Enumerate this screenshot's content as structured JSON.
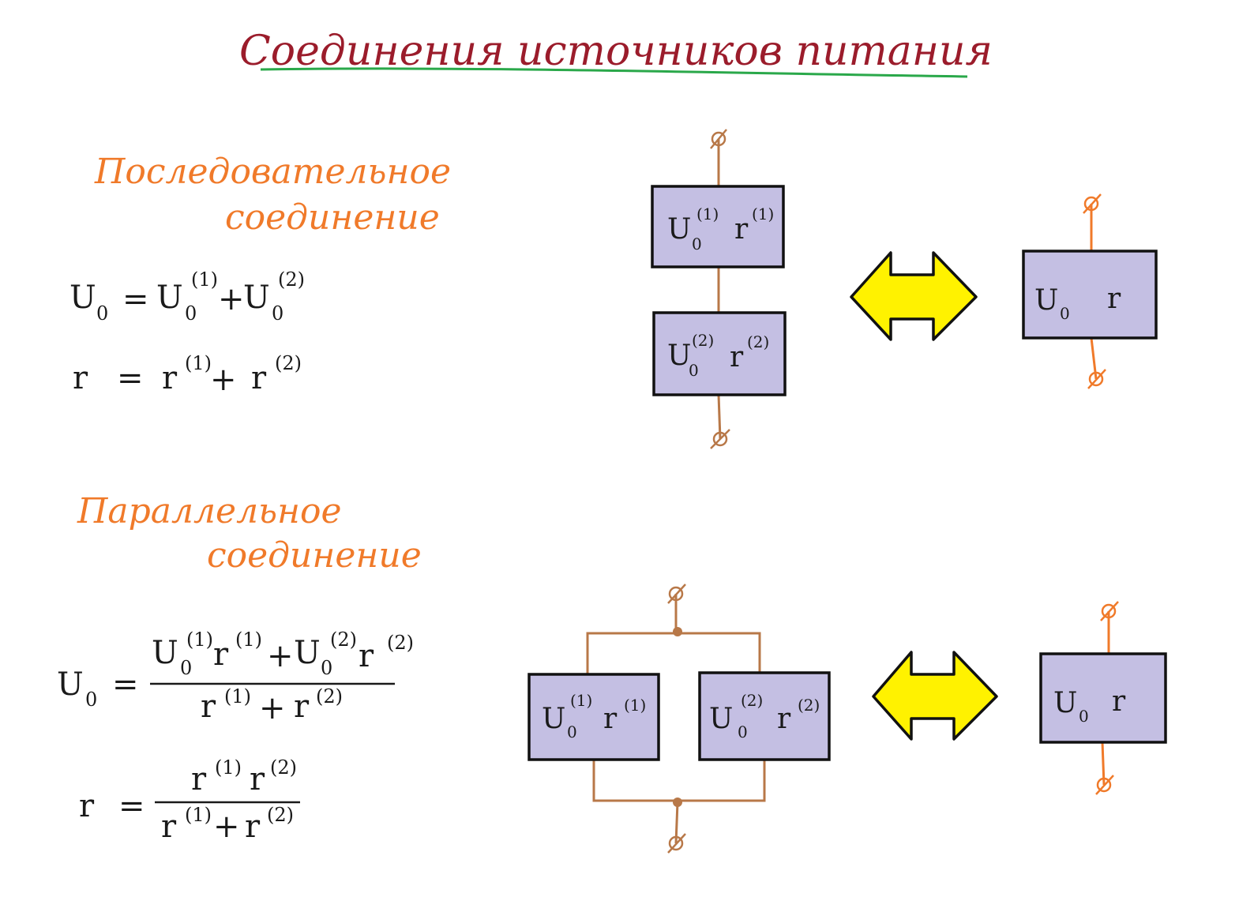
{
  "title": "Соединения источников питания",
  "series_section": {
    "heading_line1": "Последовательное",
    "heading_line2": "соединение",
    "formula_U": {
      "lhs": "U",
      "lhs_sub": "0",
      "eq": "=",
      "t1": "U",
      "t1_sub": "0",
      "t1_sup": "(1)",
      "plus": "+",
      "t2": "U",
      "t2_sub": "0",
      "t2_sup": "(2)"
    },
    "formula_r": {
      "lhs": "r",
      "eq": "=",
      "t1": "r",
      "t1_sup": "(1)",
      "plus": "+",
      "t2": "r",
      "t2_sup": "(2)"
    },
    "box1": {
      "u": "U",
      "u_sub": "0",
      "u_sup": "(1)",
      "r": "r",
      "r_sup": "(1)"
    },
    "box2": {
      "u": "U",
      "u_sub": "0",
      "u_sup": "(2)",
      "r": "r",
      "r_sup": "(2)"
    },
    "equiv": {
      "u": "U",
      "u_sub": "0",
      "r": "r"
    }
  },
  "parallel_section": {
    "heading_line1": "Параллельное",
    "heading_line2": "соединение",
    "formula_U": {
      "lhs": "U",
      "lhs_sub": "0",
      "eq": "=",
      "num_u1": "U",
      "num_u1_sub": "0",
      "num_u1_sup": "(1)",
      "num_r1": "r",
      "num_r1_sup": "(1)",
      "num_plus": "+",
      "num_u2": "U",
      "num_u2_sub": "0",
      "num_u2_sup": "(2)",
      "num_r2": "r",
      "num_r2_sup": "(2)",
      "den_r1": "r",
      "den_r1_sup": "(1)",
      "den_plus": "+",
      "den_r2": "r",
      "den_r2_sup": "(2)"
    },
    "formula_r": {
      "lhs": "r",
      "eq": "=",
      "num_r1": "r",
      "num_r1_sup": "(1)",
      "num_r2": "r",
      "num_r2_sup": "(2)",
      "den_r1": "r",
      "den_r1_sup": "(1)",
      "den_plus": "+",
      "den_r2": "r",
      "den_r2_sup": "(2)"
    },
    "box1": {
      "u": "U",
      "u_sub": "0",
      "u_sup": "(1)",
      "r": "r",
      "r_sup": "(1)"
    },
    "box2": {
      "u": "U",
      "u_sub": "0",
      "u_sup": "(2)",
      "r": "r",
      "r_sup": "(2)"
    },
    "equiv": {
      "u": "U",
      "u_sub": "0",
      "r": "r"
    }
  },
  "colors": {
    "title": "#9b1c2b",
    "title_underline": "#2aa84a",
    "heading": "#f07a2a",
    "box_fill": "#c4bfe3",
    "wire_brown": "#b87848",
    "wire_orange": "#f07a2a",
    "arrow_fill": "#fff200"
  },
  "icons": [
    "double-arrow-icon",
    "terminal-icon"
  ]
}
